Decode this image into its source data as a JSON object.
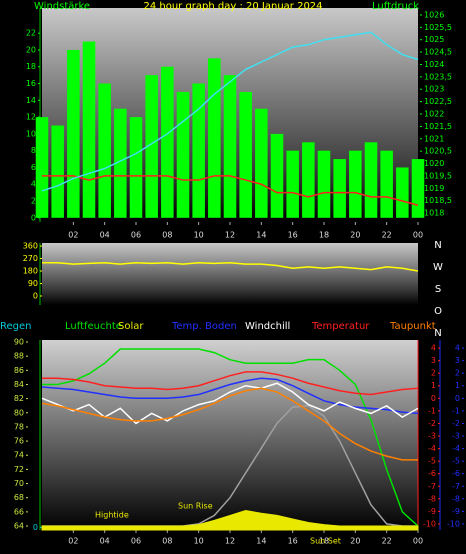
{
  "chart_data": [
    {
      "type": "combo",
      "title": "24 hour graph day : 20 Januar 2024",
      "ylabel": "Windstärke",
      "y2label": "Luftdruck",
      "x": [
        0,
        1,
        2,
        3,
        4,
        5,
        6,
        7,
        8,
        9,
        10,
        11,
        12,
        13,
        14,
        15,
        16,
        17,
        18,
        19,
        20,
        21,
        22,
        23,
        24
      ],
      "xlim": [
        0,
        24
      ],
      "xticks": [
        {
          "value": 2,
          "label": "02"
        },
        {
          "value": 4,
          "label": "04"
        },
        {
          "value": 6,
          "label": "06"
        },
        {
          "value": 8,
          "label": "08"
        },
        10,
        12,
        14,
        16,
        18,
        20,
        22,
        {
          "value": 24,
          "label": "00"
        }
      ],
      "ylim": [
        -0.5,
        25
      ],
      "yticks": [
        0,
        2,
        4,
        6,
        8,
        10,
        12,
        14,
        16,
        18,
        20,
        22
      ],
      "y2lim": [
        1017.64,
        1026.28
      ],
      "y2ticks": [
        1018,
        {
          "value": 1018.5,
          "label": "1018,5"
        },
        1019,
        {
          "value": 1019.5,
          "label": "1019,5"
        },
        1020,
        {
          "value": 1020.5,
          "label": "1020,5"
        },
        1021,
        {
          "value": 1021.5,
          "label": "1021,5"
        },
        1022,
        {
          "value": 1022.5,
          "label": "1022,5"
        },
        1023,
        {
          "value": 1023.5,
          "label": "1023,5"
        },
        1024,
        {
          "value": 1024.5,
          "label": "1024,5"
        },
        1025,
        {
          "value": 1025.5,
          "label": "1025,5"
        },
        1026
      ],
      "series": [
        {
          "type": "bar",
          "color": "#00ff00",
          "values": [
            12,
            11,
            20,
            21,
            16,
            13,
            12,
            17,
            18,
            15,
            16,
            19,
            17,
            15,
            13,
            10,
            8,
            9,
            8,
            7,
            8,
            9,
            8,
            6,
            7
          ]
        },
        {
          "type": "line",
          "color": "#ff2020",
          "values": [
            5,
            5,
            5,
            4.5,
            5,
            5,
            5,
            5,
            5,
            4.5,
            4.5,
            5,
            5,
            4.5,
            4,
            3,
            3,
            2.5,
            3,
            3,
            3,
            2.5,
            2.5,
            2,
            1.5
          ]
        },
        {
          "type": "line",
          "color": "#40e0f0",
          "axis": "y2",
          "values": [
            1018.9,
            1019.1,
            1019.4,
            1019.6,
            1019.8,
            1020.1,
            1020.4,
            1020.8,
            1021.2,
            1021.7,
            1022.2,
            1022.8,
            1023.3,
            1023.8,
            1024.1,
            1024.4,
            1024.7,
            1024.8,
            1025,
            1025.1,
            1025.2,
            1025.3,
            1024.8,
            1024.4,
            1024.2
          ]
        }
      ]
    },
    {
      "type": "combo",
      "x": [
        0,
        1,
        2,
        3,
        4,
        5,
        6,
        7,
        8,
        9,
        10,
        11,
        12,
        13,
        14,
        15,
        16,
        17,
        18,
        19,
        20,
        21,
        22,
        23,
        24
      ],
      "xlim": [
        0,
        24
      ],
      "ylim": [
        -65,
        382
      ],
      "yticks": [
        0,
        90,
        180,
        270,
        360
      ],
      "compass": [
        "N",
        "W",
        "S",
        "O",
        "N"
      ],
      "series": [
        {
          "type": "line",
          "color": "#ffff00",
          "values": [
            240,
            240,
            230,
            235,
            240,
            230,
            240,
            235,
            240,
            230,
            240,
            235,
            240,
            230,
            230,
            220,
            200,
            210,
            200,
            210,
            200,
            190,
            210,
            200,
            180
          ]
        }
      ]
    },
    {
      "type": "combo",
      "x": [
        0,
        1,
        2,
        3,
        4,
        5,
        6,
        7,
        8,
        9,
        10,
        11,
        12,
        13,
        14,
        15,
        16,
        17,
        18,
        19,
        20,
        21,
        22,
        23,
        24
      ],
      "xlim": [
        0,
        24
      ],
      "xticks": [
        {
          "value": 2,
          "label": "02"
        },
        {
          "value": 4,
          "label": "04"
        },
        {
          "value": 6,
          "label": "06"
        },
        {
          "value": 8,
          "label": "08"
        },
        10,
        12,
        14,
        16,
        18,
        20,
        22,
        {
          "value": 24,
          "label": "00"
        }
      ],
      "ylim": [
        63.44,
        90.28
      ],
      "yticks": [
        64,
        66,
        68,
        70,
        72,
        74,
        76,
        78,
        80,
        82,
        84,
        86,
        88,
        90
      ],
      "y2lim": [
        -10.48,
        4.64
      ],
      "y2ticks": [
        4,
        3,
        2,
        1,
        0,
        -1,
        -2,
        -3,
        -4,
        -5,
        -6,
        -7,
        -8,
        -9,
        -10
      ],
      "y3lim": [
        -10.48,
        4.64
      ],
      "y3ticks": [
        4,
        3,
        2,
        1,
        0,
        -1,
        -2,
        -3,
        -4,
        -5,
        -6,
        -7,
        -8,
        -9,
        -10
      ],
      "y4lim": [
        -0.1,
        7
      ],
      "y4ticks": [
        0
      ],
      "annotations": [
        "Hightide",
        "Sun Rise",
        "Sun Set"
      ],
      "series": [
        {
          "type": "line",
          "color": "#a0a0a0",
          "values": [
            64,
            64,
            64,
            64,
            64,
            64,
            64,
            64,
            64,
            64,
            64.3,
            65.5,
            68,
            71.5,
            75,
            78.5,
            80.8,
            81,
            79.5,
            76,
            71.5,
            67,
            64.3,
            64,
            64
          ]
        },
        {
          "name": "Regen",
          "type": "line",
          "color": "#00c8d8",
          "axis": "y4",
          "values": [
            0,
            0,
            0,
            0,
            0,
            0,
            0,
            0,
            0,
            0,
            0,
            0,
            0,
            0,
            0,
            0,
            0,
            0,
            0,
            0,
            0,
            0,
            0,
            0,
            0
          ]
        },
        {
          "name": "Luftfeuchte",
          "type": "line",
          "color": "#00e000",
          "values": [
            84,
            84,
            84.5,
            85.5,
            87,
            89,
            89,
            89,
            89,
            89,
            89,
            88.5,
            87.5,
            87,
            87,
            87,
            87,
            87.5,
            87.5,
            86,
            84,
            79,
            72,
            66,
            64
          ]
        },
        {
          "name": "Solar",
          "type": "area",
          "color": "#e8e800",
          "values": [
            64,
            64,
            64,
            64,
            64,
            64,
            64,
            64,
            64,
            64,
            64.2,
            64.8,
            65.5,
            66.2,
            65.8,
            65.5,
            65,
            64.5,
            64.2,
            64,
            64,
            64,
            64,
            64,
            64
          ]
        },
        {
          "name": "Temp. Boden",
          "type": "line",
          "color": "#2030ff",
          "axis": "y3",
          "values": [
            0.9,
            0.8,
            0.7,
            0.5,
            0.3,
            0.1,
            0,
            0,
            0,
            0.1,
            0.3,
            0.7,
            1.1,
            1.4,
            1.6,
            1.5,
            1,
            0.4,
            -0.2,
            -0.5,
            -0.7,
            -0.8,
            -0.9,
            -1.1,
            -1.2
          ]
        },
        {
          "name": "Windchill",
          "type": "line",
          "color": "#ffffff",
          "axis": "y2",
          "values": [
            0,
            -0.5,
            -1,
            -0.5,
            -1.5,
            -0.8,
            -2,
            -1.2,
            -1.8,
            -1,
            -0.5,
            -0.2,
            0.5,
            1,
            0.8,
            1.2,
            0.5,
            -0.5,
            -1,
            -0.3,
            -0.8,
            -1.2,
            -0.6,
            -1.5,
            -0.8
          ]
        },
        {
          "name": "Temperatur",
          "type": "line",
          "color": "#ff2020",
          "axis": "y2",
          "values": [
            1.6,
            1.6,
            1.5,
            1.3,
            1,
            0.9,
            0.8,
            0.8,
            0.7,
            0.8,
            1,
            1.4,
            1.8,
            2.1,
            2.1,
            1.9,
            1.6,
            1.2,
            0.9,
            0.6,
            0.4,
            0.3,
            0.5,
            0.7,
            0.8
          ]
        },
        {
          "name": "Taupunkt",
          "type": "line",
          "color": "#ff8000",
          "axis": "y2",
          "values": [
            -0.4,
            -0.6,
            -0.9,
            -1.2,
            -1.5,
            -1.7,
            -1.8,
            -1.8,
            -1.6,
            -1.3,
            -0.9,
            -0.4,
            0.2,
            0.6,
            0.8,
            0.5,
            -0.2,
            -1,
            -1.8,
            -2.8,
            -3.6,
            -4.2,
            -4.6,
            -4.9,
            -4.9
          ]
        }
      ]
    }
  ]
}
